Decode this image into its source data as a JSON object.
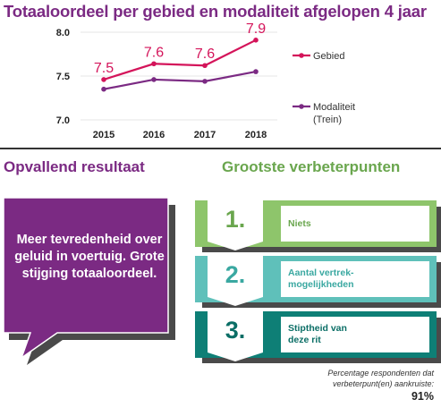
{
  "title": "Totaaloordeel per gebied en modaliteit afgelopen 4 jaar",
  "chart_data": {
    "type": "line",
    "x": [
      "2015",
      "2016",
      "2017",
      "2018"
    ],
    "ylim": [
      7.0,
      8.0
    ],
    "yticks": [
      "7.0",
      "7.5",
      "8.0"
    ],
    "series": [
      {
        "name": "Gebied",
        "values": [
          7.46,
          7.64,
          7.62,
          7.91
        ],
        "labels": [
          "7.5",
          "7.6",
          "7.6",
          "7.9"
        ],
        "color": "#d4145a"
      },
      {
        "name": "Modaliteit (Trein)",
        "values": [
          7.35,
          7.46,
          7.44,
          7.55
        ],
        "color": "#7b2a83"
      }
    ],
    "legend": [
      "Gebied",
      "Modaliteit",
      "(Trein)"
    ]
  },
  "sections": {
    "left_heading": "Opvallend resultaat",
    "right_heading": "Grootste verbeterpunten"
  },
  "highlight": {
    "text": "Meer tevredenheid over geluid in voertuig. Grote stijging totaaloordeel.",
    "color": "#7b2a83"
  },
  "items": [
    {
      "num": "1.",
      "label": "Niets",
      "color": "#8ec56b",
      "text_color": "#6aa64e"
    },
    {
      "num": "2.",
      "label": "Aantal vertrek-\nmogelijkheden",
      "color": "#5fc0ba",
      "text_color": "#3aa8a1"
    },
    {
      "num": "3.",
      "label": "Stiptheid van\ndeze rit",
      "color": "#0e7f76",
      "text_color": "#0b6e66"
    }
  ],
  "footnote": {
    "line1": "Percentage respondenten dat",
    "line2": "verbeterpunt(en) aankruiste:",
    "value": "91%"
  }
}
